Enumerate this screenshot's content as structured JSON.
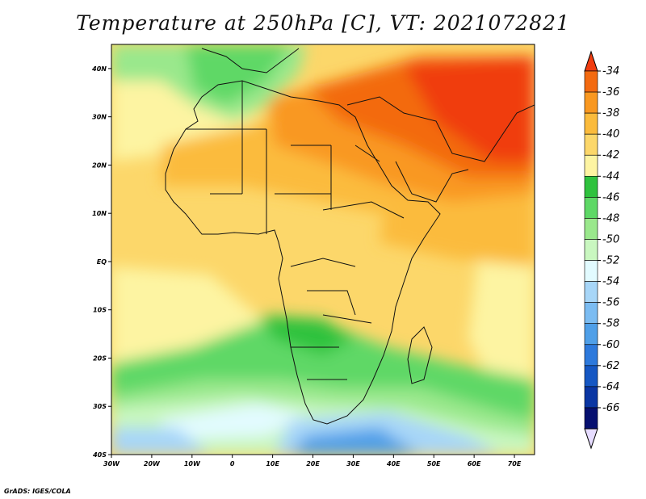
{
  "title": "Temperature at 250hPa [C], VT: 2021072821",
  "credit": "GrADS: IGES/COLA",
  "map": {
    "region": "Africa and Middle East",
    "lon_range": [
      -30,
      75
    ],
    "lat_range": [
      -40,
      45
    ],
    "lon_ticks": [
      "30W",
      "20W",
      "10W",
      "0",
      "10E",
      "20E",
      "30E",
      "40E",
      "50E",
      "60E",
      "70E"
    ],
    "lat_ticks": [
      "40N",
      "30N",
      "20N",
      "10N",
      "EQ",
      "10S",
      "20S",
      "30S",
      "40S"
    ],
    "variable": "Temperature at 250hPa",
    "units": "C"
  },
  "legend": {
    "levels": [
      "-34",
      "-36",
      "-38",
      "-40",
      "-42",
      "-44",
      "-46",
      "-48",
      "-50",
      "-52",
      "-54",
      "-56",
      "-58",
      "-60",
      "-62",
      "-64",
      "-66"
    ],
    "colors": [
      "#f03c10",
      "#f36a10",
      "#f99820",
      "#fbbb3c",
      "#fcd76a",
      "#fdf4a2",
      "#2fc23e",
      "#5ed866",
      "#9ae88c",
      "#c9f7c0",
      "#e2fbff",
      "#a7d6f8",
      "#7bbcf2",
      "#4f9fe8",
      "#2d79dc",
      "#1557c3",
      "#0a36a3",
      "#061070",
      "#e6dcff"
    ]
  }
}
